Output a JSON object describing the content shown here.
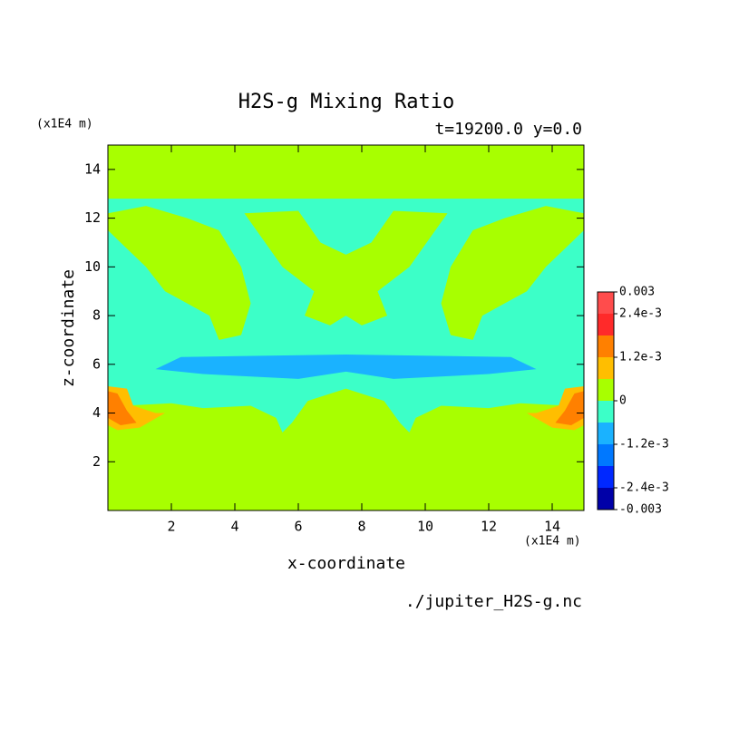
{
  "chart_data": {
    "type": "contour",
    "title": "H2S-g Mixing Ratio",
    "subtitle": "t=19200.0 y=0.0",
    "x_label": "x-coordinate",
    "y_label": "z-coordinate",
    "x_unit": "(x1E4 m)",
    "y_unit": "(x1E4 m)",
    "source": "./jupiter_H2S-g.nc",
    "xlim": [
      0,
      15
    ],
    "ylim": [
      0,
      15
    ],
    "xticks": [
      2,
      4,
      6,
      8,
      10,
      12,
      14
    ],
    "yticks": [
      2,
      4,
      6,
      8,
      10,
      12,
      14
    ],
    "levels": [
      -0.003,
      -0.0024,
      -0.0018,
      -0.0012,
      -0.0006,
      0,
      0.0006,
      0.0012,
      0.0018,
      0.0024,
      0.003
    ],
    "colors": [
      "#0000a8",
      "#0028ff",
      "#0078ff",
      "#1ab2ff",
      "#3cffc8",
      "#a8ff00",
      "#ffbe00",
      "#ff8000",
      "#ff2a2a",
      "#ff4c4c"
    ],
    "colorbar_ticks": [
      -0.003,
      {
        "value": -0.0024,
        "label": "-2.4e-3"
      },
      {
        "value": -0.0012,
        "label": "-1.2e-3"
      },
      0,
      {
        "value": 0.0012,
        "label": "1.2e-3"
      },
      {
        "value": 0.0024,
        "label": "2.4e-3"
      },
      0.003
    ],
    "background_band": 5,
    "regions": [
      {
        "band": 4,
        "points": [
          [
            0,
            3.5
          ],
          [
            0,
            12.8
          ],
          [
            15,
            12.8
          ],
          [
            15,
            3.5
          ],
          [
            14.5,
            4.3
          ],
          [
            13,
            4.4
          ],
          [
            12,
            4.2
          ],
          [
            10.5,
            4.3
          ],
          [
            9.7,
            3.8
          ],
          [
            9.5,
            3.2
          ],
          [
            9.2,
            3.6
          ],
          [
            8.7,
            4.5
          ],
          [
            7.5,
            5
          ],
          [
            6.3,
            4.5
          ],
          [
            5.8,
            3.6
          ],
          [
            5.5,
            3.2
          ],
          [
            5.3,
            3.8
          ],
          [
            4.5,
            4.3
          ],
          [
            3,
            4.2
          ],
          [
            2,
            4.4
          ],
          [
            0.5,
            4.3
          ]
        ]
      },
      {
        "band": 5,
        "points": [
          [
            4.3,
            12.2
          ],
          [
            5.5,
            10
          ],
          [
            6.5,
            9
          ],
          [
            6.2,
            8
          ],
          [
            7,
            7.6
          ],
          [
            7.5,
            8
          ],
          [
            8,
            7.6
          ],
          [
            8.8,
            8
          ],
          [
            8.5,
            9
          ],
          [
            9.5,
            10
          ],
          [
            10.7,
            12.2
          ],
          [
            9,
            12.3
          ],
          [
            8.3,
            11
          ],
          [
            7.5,
            10.5
          ],
          [
            6.7,
            11
          ],
          [
            6,
            12.3
          ]
        ]
      },
      {
        "band": 5,
        "points": [
          [
            1.2,
            12.5
          ],
          [
            2.5,
            12
          ],
          [
            3.5,
            11.5
          ],
          [
            4.2,
            10
          ],
          [
            4.5,
            8.5
          ],
          [
            4.2,
            7.2
          ],
          [
            3.5,
            7
          ],
          [
            3.2,
            8
          ],
          [
            2.5,
            8.5
          ],
          [
            1.8,
            9
          ],
          [
            1.2,
            10
          ],
          [
            0,
            11.5
          ],
          [
            0,
            12.2
          ]
        ]
      },
      {
        "band": 5,
        "points": [
          [
            13.8,
            12.5
          ],
          [
            12.5,
            12
          ],
          [
            11.5,
            11.5
          ],
          [
            10.8,
            10
          ],
          [
            10.5,
            8.5
          ],
          [
            10.8,
            7.2
          ],
          [
            11.5,
            7
          ],
          [
            11.8,
            8
          ],
          [
            12.5,
            8.5
          ],
          [
            13.2,
            9
          ],
          [
            13.8,
            10
          ],
          [
            15,
            11.5
          ],
          [
            15,
            12.2
          ]
        ]
      },
      {
        "band": 3,
        "points": [
          [
            1.5,
            5.8
          ],
          [
            2.3,
            6.3
          ],
          [
            7.5,
            6.4
          ],
          [
            12.7,
            6.3
          ],
          [
            13.5,
            5.8
          ],
          [
            12,
            5.6
          ],
          [
            10.5,
            5.5
          ],
          [
            9,
            5.4
          ],
          [
            7.5,
            5.7
          ],
          [
            6,
            5.4
          ],
          [
            4.5,
            5.5
          ],
          [
            3,
            5.6
          ]
        ]
      },
      {
        "band": 6,
        "points": [
          [
            0,
            3.5
          ],
          [
            0.3,
            3.3
          ],
          [
            1,
            3.4
          ],
          [
            1.8,
            4
          ],
          [
            1.5,
            4
          ],
          [
            0.8,
            4.3
          ],
          [
            0.6,
            5
          ],
          [
            0,
            5.1
          ]
        ]
      },
      {
        "band": 6,
        "points": [
          [
            15,
            3.5
          ],
          [
            14.7,
            3.3
          ],
          [
            14,
            3.4
          ],
          [
            13.2,
            4
          ],
          [
            13.5,
            4
          ],
          [
            14.2,
            4.3
          ],
          [
            14.4,
            5
          ],
          [
            15,
            5.1
          ]
        ]
      },
      {
        "band": 7,
        "points": [
          [
            0,
            3.8
          ],
          [
            0.4,
            3.5
          ],
          [
            0.9,
            3.6
          ],
          [
            0.6,
            4.1
          ],
          [
            0.3,
            4.8
          ],
          [
            0,
            4.9
          ]
        ]
      },
      {
        "band": 7,
        "points": [
          [
            15,
            3.8
          ],
          [
            14.6,
            3.5
          ],
          [
            14.1,
            3.6
          ],
          [
            14.4,
            4.1
          ],
          [
            14.7,
            4.8
          ],
          [
            15,
            4.9
          ]
        ]
      }
    ]
  }
}
